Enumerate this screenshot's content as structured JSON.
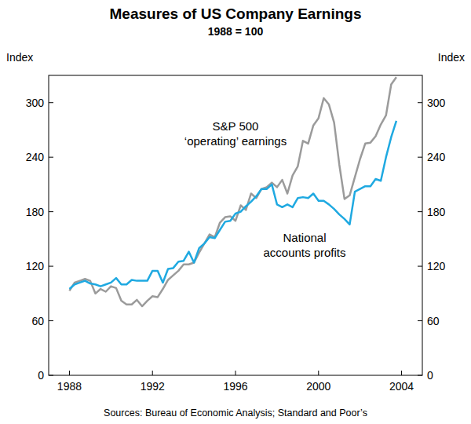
{
  "chart_data": {
    "type": "line",
    "title": "Measures of US Company Earnings",
    "subtitle": "1988 = 100",
    "y_label": "Index",
    "source": "Sources: Bureau of Economic Analysis; Standard and Poor’s",
    "x": [
      1988,
      1988.25,
      1988.5,
      1988.75,
      1989,
      1989.25,
      1989.5,
      1989.75,
      1990,
      1990.25,
      1990.5,
      1990.75,
      1991,
      1991.25,
      1991.5,
      1991.75,
      1992,
      1992.25,
      1992.5,
      1992.75,
      1993,
      1993.25,
      1993.5,
      1993.75,
      1994,
      1994.25,
      1994.5,
      1994.75,
      1995,
      1995.25,
      1995.5,
      1995.75,
      1996,
      1996.25,
      1996.5,
      1996.75,
      1997,
      1997.25,
      1997.5,
      1997.75,
      1998,
      1998.25,
      1998.5,
      1998.75,
      1999,
      1999.25,
      1999.5,
      1999.75,
      2000,
      2000.25,
      2000.5,
      2000.75,
      2001,
      2001.25,
      2001.5,
      2001.75,
      2002,
      2002.25,
      2002.5,
      2002.75,
      2003,
      2003.25,
      2003.5,
      2003.75
    ],
    "series": [
      {
        "label": [
          "S&P 500",
          "‘operating’ earnings"
        ],
        "color": "#9b9b9b",
        "values": [
          93,
          102,
          104,
          106,
          104,
          90,
          95,
          92,
          98,
          96,
          82,
          78,
          78,
          83,
          76,
          82,
          87,
          86,
          95,
          105,
          110,
          115,
          122,
          122,
          124,
          135,
          145,
          155,
          152,
          168,
          174,
          175,
          170,
          187,
          182,
          200,
          195,
          205,
          207,
          212,
          207,
          215,
          200,
          220,
          230,
          258,
          255,
          275,
          283,
          305,
          298,
          278,
          232,
          194,
          198,
          218,
          238,
          255,
          256,
          263,
          276,
          286,
          320,
          328
        ]
      },
      {
        "label": [
          "National",
          "accounts profits"
        ],
        "color": "#1fa9e1",
        "values": [
          95,
          100,
          102,
          104,
          101,
          100,
          98,
          100,
          102,
          107,
          100,
          100,
          105,
          104,
          104,
          104,
          115,
          115,
          102,
          117,
          118,
          125,
          126,
          136,
          124,
          140,
          145,
          152,
          151,
          160,
          169,
          170,
          178,
          180,
          186,
          191,
          197,
          205,
          205,
          210,
          188,
          185,
          188,
          185,
          195,
          196,
          195,
          200,
          192,
          192,
          188,
          183,
          177,
          172,
          166,
          202,
          205,
          208,
          208,
          216,
          214,
          240,
          262,
          280
        ]
      }
    ],
    "xlim": [
      1987,
      2005
    ],
    "xticks": [
      1988,
      1992,
      1996,
      2000,
      2004
    ],
    "ylim": [
      0,
      330
    ],
    "yticks": [
      0,
      60,
      120,
      180,
      240,
      300
    ],
    "grid": false
  }
}
